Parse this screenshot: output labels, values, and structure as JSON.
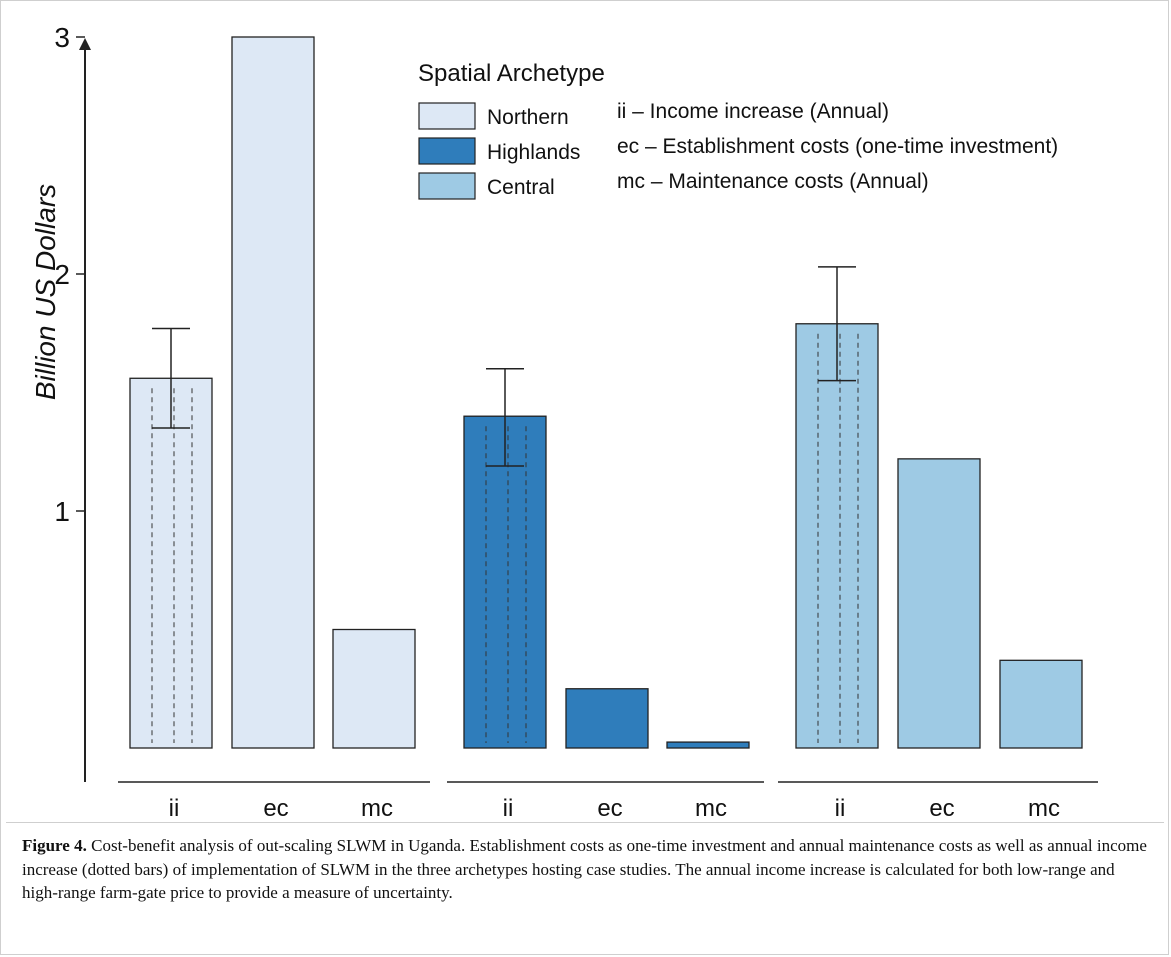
{
  "chart_data": {
    "type": "bar",
    "ylabel": "Billion US Dollars",
    "yticks": [
      1,
      2,
      3
    ],
    "ylim": [
      0,
      3.1
    ],
    "legend": {
      "title": "Spatial Archetype",
      "placement": "top-center",
      "entries": [
        {
          "name": "Northern",
          "color": "#dde8f5",
          "abbr": "ii – Income increase (Annual)"
        },
        {
          "name": "Highlands",
          "color": "#2f7dbb",
          "abbr": "ec – Establishment costs (one-time investment)"
        },
        {
          "name": "Central",
          "color": "#9ecae4",
          "abbr": "mc – Maintenance costs (Annual)"
        }
      ]
    },
    "categories": [
      "ii",
      "ec",
      "mc"
    ],
    "series": [
      {
        "name": "Northern",
        "color": "#dde8f5",
        "values": [
          1.56,
          3.0,
          0.5
        ],
        "error": {
          "low": 1.35,
          "high": 1.77
        },
        "dotted_first": true
      },
      {
        "name": "Highlands",
        "color": "#2f7dbb",
        "values": [
          1.4,
          0.25,
          0.025
        ],
        "error": {
          "low": 1.19,
          "high": 1.6
        },
        "dotted_first": true
      },
      {
        "name": "Central",
        "color": "#9ecae4",
        "values": [
          1.79,
          1.22,
          0.37
        ],
        "error": {
          "low": 1.55,
          "high": 2.03
        },
        "dotted_first": true
      }
    ]
  },
  "caption": {
    "lead": "Figure 4.",
    "text": " Cost-benefit analysis of out-scaling SLWM in Uganda. Establishment costs as one-time investment and annual maintenance costs as well as annual income increase (dotted bars) of implementation of SLWM in the three archetypes hosting case studies. The annual income increase is calculated for both low-range and high-range farm-gate price to provide a measure of uncertainty."
  }
}
